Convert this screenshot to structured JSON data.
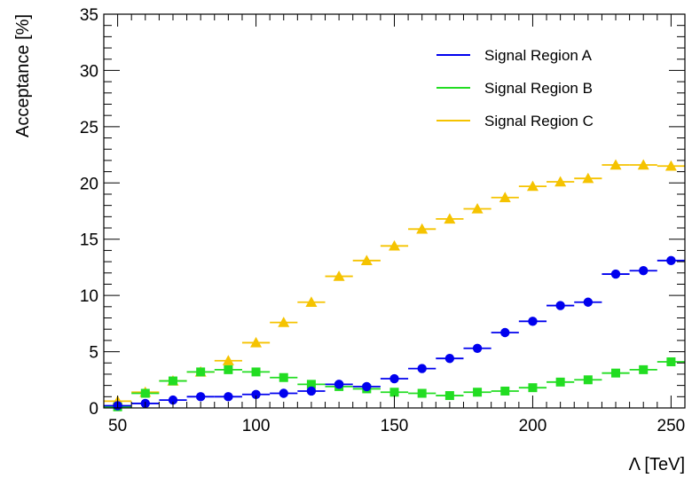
{
  "chart_data": {
    "type": "scatter",
    "xlabel": "Λ [TeV]",
    "ylabel": "Acceptance [%]",
    "xlim": [
      45,
      255
    ],
    "ylim": [
      0,
      35
    ],
    "x_ticks": [
      50,
      100,
      150,
      200,
      250
    ],
    "y_ticks": [
      0,
      5,
      10,
      15,
      20,
      25,
      30,
      35
    ],
    "bin_halfwidth": 5,
    "legend_position": "top-right",
    "x": [
      50,
      60,
      70,
      80,
      90,
      100,
      110,
      120,
      130,
      140,
      150,
      160,
      170,
      180,
      190,
      200,
      210,
      220,
      230,
      240,
      250
    ],
    "series": [
      {
        "name": "Signal Region A",
        "color": "#0000ee",
        "marker": "circle",
        "values": [
          0.2,
          0.4,
          0.7,
          1.0,
          1.0,
          1.2,
          1.3,
          1.5,
          2.1,
          1.9,
          2.6,
          3.5,
          4.4,
          5.3,
          6.7,
          7.7,
          9.1,
          9.4,
          11.9,
          12.2,
          13.1
        ]
      },
      {
        "name": "Signal Region B",
        "color": "#22dd22",
        "marker": "square",
        "values": [
          0.1,
          1.3,
          2.4,
          3.2,
          3.4,
          3.2,
          2.7,
          2.1,
          1.9,
          1.7,
          1.4,
          1.3,
          1.1,
          1.4,
          1.5,
          1.8,
          2.3,
          2.5,
          3.1,
          3.4,
          4.1
        ]
      },
      {
        "name": "Signal Region C",
        "color": "#f5c300",
        "marker": "triangle",
        "values": [
          0.6,
          1.4,
          2.4,
          3.2,
          4.2,
          5.8,
          7.6,
          9.4,
          11.7,
          13.1,
          14.4,
          15.9,
          16.8,
          17.7,
          18.7,
          19.7,
          20.1,
          20.4,
          21.6,
          21.6,
          21.5
        ]
      }
    ]
  }
}
